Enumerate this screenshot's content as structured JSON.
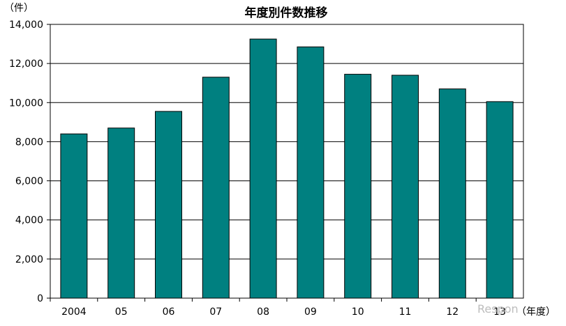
{
  "chart_data": {
    "type": "bar",
    "title": "年度別件数推移",
    "xlabel": "（年度）",
    "ylabel": "（件）",
    "categories": [
      "2004",
      "05",
      "06",
      "07",
      "08",
      "09",
      "10",
      "11",
      "12",
      "13"
    ],
    "values": [
      8400,
      8700,
      9550,
      11300,
      13250,
      12850,
      11450,
      11400,
      10700,
      10050
    ],
    "ylim": [
      0,
      14000
    ],
    "yticks": [
      0,
      2000,
      4000,
      6000,
      8000,
      10000,
      12000,
      14000
    ],
    "ytick_labels": [
      "0",
      "2,000",
      "4,000",
      "6,000",
      "8,000",
      "10,000",
      "12,000",
      "14,000"
    ],
    "grid": true,
    "legend": false,
    "colors": {
      "bar_fill": "#008080",
      "bar_stroke": "#000000",
      "grid": "#000000",
      "frame": "#000000",
      "text": "#000000",
      "watermark": "#bdbdbd"
    }
  },
  "watermark": {
    "text": "Respon"
  }
}
